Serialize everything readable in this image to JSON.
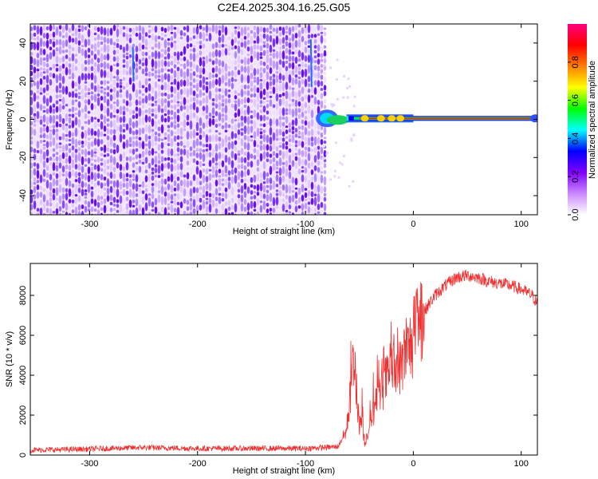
{
  "chart_data": [
    {
      "type": "heatmap",
      "title": "C2E4.2025.304.16.25.G05",
      "xlabel": "Height of straight line (km)",
      "ylabel": "Frequency (Hz)",
      "xlim": [
        -355,
        115
      ],
      "ylim": [
        -50,
        50
      ],
      "x_ticks": [
        -300,
        -200,
        -100,
        0,
        100
      ],
      "y_ticks": [
        -40,
        -20,
        0,
        20,
        40
      ],
      "signal_line": {
        "frequency": 0.5,
        "start_km": -85,
        "end_km": 115
      },
      "noise_region": {
        "start_km": -355,
        "end_km": -85
      },
      "colorbar": {
        "label": "Normalized spectral amplitude",
        "range": [
          0,
          1
        ],
        "ticks": [
          0.0,
          0.2,
          0.4,
          0.6,
          0.8
        ],
        "tick_labels": [
          "0.0",
          "0.2",
          "0.4",
          "0.6",
          "0.8"
        ],
        "colors": [
          "#ffffff",
          "#cc88ff",
          "#7f00ff",
          "#0000ff",
          "#00ffff",
          "#00ff00",
          "#ffff00",
          "#ff8000",
          "#ff0000",
          "#ff0080"
        ]
      }
    },
    {
      "type": "line",
      "xlabel": "Height of straight line (km)",
      "ylabel": "SNR (10 * v/v)",
      "xlim": [
        -355,
        115
      ],
      "ylim": [
        0,
        9600
      ],
      "x_ticks": [
        -300,
        -200,
        -100,
        0,
        100
      ],
      "y_ticks": [
        0,
        2000,
        4000,
        6000,
        8000
      ],
      "line_color": "#f03030",
      "series": [
        {
          "name": "SNR",
          "x": [
            -355,
            -300,
            -250,
            -200,
            -150,
            -100,
            -70,
            -62,
            -58,
            -55,
            -52,
            -50,
            -48,
            -45,
            -40,
            -35,
            -30,
            -25,
            -20,
            -15,
            -10,
            -5,
            0,
            5,
            10,
            20,
            30,
            40,
            50,
            60,
            70,
            80,
            90,
            100,
            110,
            115
          ],
          "y": [
            250,
            300,
            380,
            330,
            330,
            330,
            420,
            1200,
            3200,
            5200,
            2600,
            1500,
            1800,
            600,
            1600,
            2500,
            3200,
            3800,
            4400,
            4000,
            4800,
            5200,
            5800,
            6500,
            7200,
            8000,
            8500,
            8900,
            9000,
            8900,
            8700,
            8600,
            8500,
            8300,
            8000,
            7600
          ]
        }
      ]
    }
  ]
}
